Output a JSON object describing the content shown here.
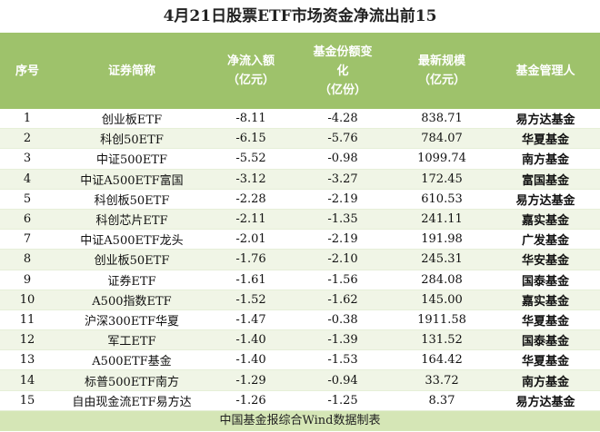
{
  "title": "4月21日股票ETF市场资金净流出前15",
  "columns": [
    "序号",
    "证券简称",
    "净流入额\n（亿元）",
    "基金份额变\n化\n（亿份）",
    "最新规模\n（亿元）",
    "基金管理人"
  ],
  "rows": [
    [
      "1",
      "创业板ETF",
      "-8.11",
      "-4.28",
      "838.71",
      "易方达基金"
    ],
    [
      "2",
      "科创50ETF",
      "-6.15",
      "-5.76",
      "784.07",
      "华夏基金"
    ],
    [
      "3",
      "中证500ETF",
      "-5.52",
      "-0.98",
      "1099.74",
      "南方基金"
    ],
    [
      "4",
      "中证A500ETF富国",
      "-3.12",
      "-3.27",
      "172.45",
      "富国基金"
    ],
    [
      "5",
      "科创板50ETF",
      "-2.28",
      "-2.19",
      "610.53",
      "易方达基金"
    ],
    [
      "6",
      "科创芯片ETF",
      "-2.11",
      "-1.35",
      "241.11",
      "嘉实基金"
    ],
    [
      "7",
      "中证A500ETF龙头",
      "-2.01",
      "-2.19",
      "191.98",
      "广发基金"
    ],
    [
      "8",
      "创业板50ETF",
      "-1.76",
      "-2.10",
      "245.31",
      "华安基金"
    ],
    [
      "9",
      "证券ETF",
      "-1.61",
      "-1.56",
      "284.08",
      "国泰基金"
    ],
    [
      "10",
      "A500指数ETF",
      "-1.52",
      "-1.62",
      "145.00",
      "嘉实基金"
    ],
    [
      "11",
      "沪深300ETF华夏",
      "-1.47",
      "-0.38",
      "1911.58",
      "华夏基金"
    ],
    [
      "12",
      "军工ETF",
      "-1.40",
      "-1.39",
      "131.52",
      "国泰基金"
    ],
    [
      "13",
      "A500ETF基金",
      "-1.40",
      "-1.53",
      "164.42",
      "华夏基金"
    ],
    [
      "14",
      "标普500ETF南方",
      "-1.29",
      "-0.94",
      "33.72",
      "南方基金"
    ],
    [
      "15",
      "自由现金流ETF易方达",
      "-1.26",
      "-1.25",
      "8.37",
      "易方达基金"
    ]
  ],
  "footer": "中国基金报综合Wind数据制表",
  "colors": {
    "header_bg": "#9ec26b",
    "stripe": "#f0f5e6",
    "footer_bg": "#d5e6b6"
  }
}
